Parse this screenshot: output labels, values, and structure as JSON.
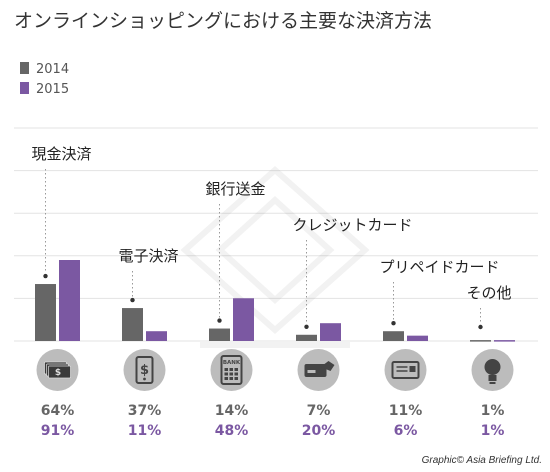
{
  "title": "オンラインショッピングにおける主要な決済方法",
  "colors": {
    "2014": "#666666",
    "2015": "#7b58a2",
    "icon_bg": "#bcbcbc",
    "grid": "#e3e3e3"
  },
  "credit": "Graphic© Asia Briefing Ltd.",
  "chart_data": {
    "type": "bar",
    "categories": [
      "現金決済",
      "電子決済",
      "銀行送金",
      "クレジットカード",
      "プリペイドカード",
      "その他"
    ],
    "series": [
      {
        "name": "2014",
        "values": [
          64,
          37,
          14,
          7,
          11,
          1
        ]
      },
      {
        "name": "2015",
        "values": [
          91,
          11,
          48,
          20,
          6,
          1
        ]
      }
    ],
    "value_labels": {
      "2014": [
        "64%",
        "37%",
        "14%",
        "7%",
        "11%",
        "1%"
      ],
      "2015": [
        "91%",
        "11%",
        "48%",
        "20%",
        "6%",
        "1%"
      ]
    },
    "icons": [
      "cash-icon",
      "mobile-payment-icon",
      "bank-atm-icon",
      "credit-card-icon",
      "prepaid-card-icon",
      "lightbulb-icon"
    ],
    "icon_text": {
      "bank": "BANK"
    },
    "ylim": [
      0,
      100
    ],
    "grid": true,
    "legend_position": "top-left"
  }
}
